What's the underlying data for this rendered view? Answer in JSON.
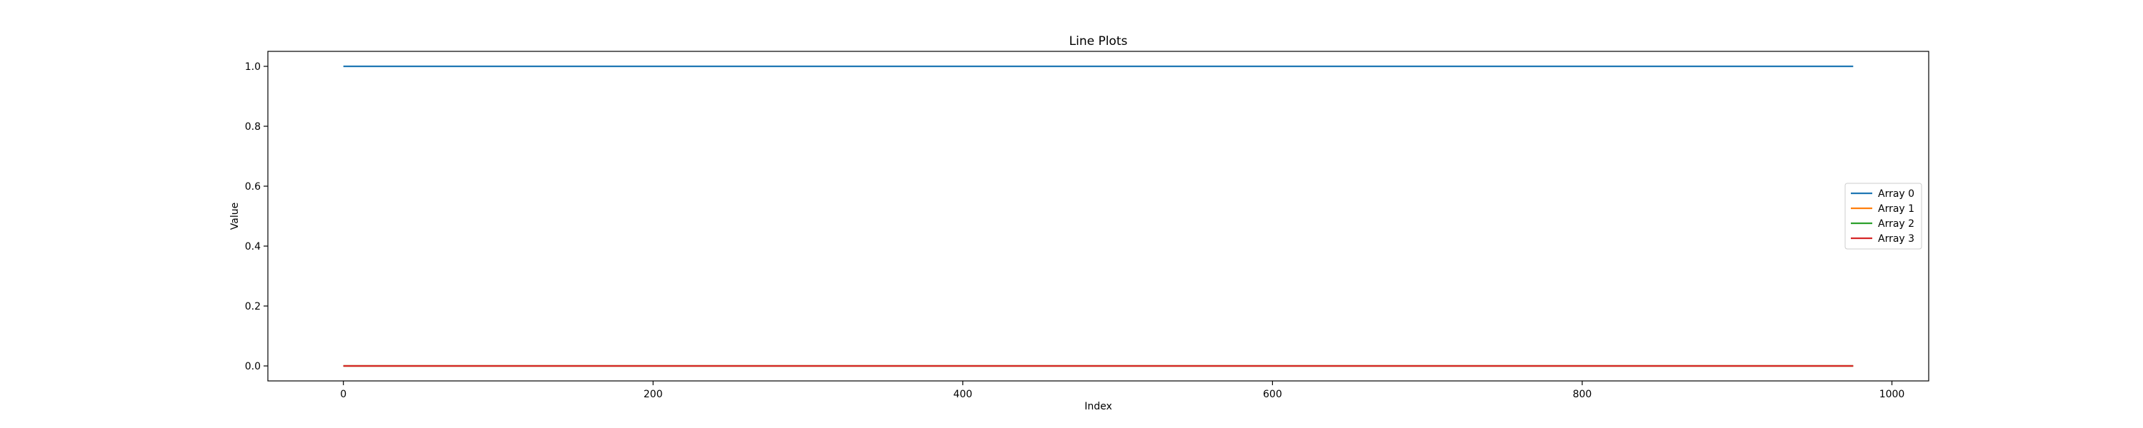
{
  "chart_data": {
    "type": "line",
    "title": "Line Plots",
    "xlabel": "Index",
    "ylabel": "Value",
    "xlim": [
      -48.75,
      1023.75
    ],
    "ylim": [
      -0.05,
      1.05
    ],
    "xticks": [
      0,
      200,
      400,
      600,
      800,
      1000
    ],
    "yticks": [
      0.0,
      0.2,
      0.4,
      0.6,
      0.8,
      1.0
    ],
    "xtick_labels": [
      "0",
      "200",
      "400",
      "600",
      "800",
      "1000"
    ],
    "ytick_labels": [
      "0.0",
      "0.2",
      "0.4",
      "0.6",
      "0.8",
      "1.0"
    ],
    "grid": false,
    "legend_position": "center-right",
    "series": [
      {
        "name": "Array 0",
        "color": "#1f77b4",
        "x": [
          0,
          975
        ],
        "y": [
          1.0,
          1.0
        ]
      },
      {
        "name": "Array 1",
        "color": "#ff7f0e",
        "x": [
          0,
          975
        ],
        "y": [
          0.0,
          0.0
        ]
      },
      {
        "name": "Array 2",
        "color": "#2ca02c",
        "x": [
          0,
          975
        ],
        "y": [
          0.0,
          0.0
        ]
      },
      {
        "name": "Array 3",
        "color": "#d62728",
        "x": [
          0,
          975
        ],
        "y": [
          0.0,
          0.0
        ]
      }
    ]
  }
}
